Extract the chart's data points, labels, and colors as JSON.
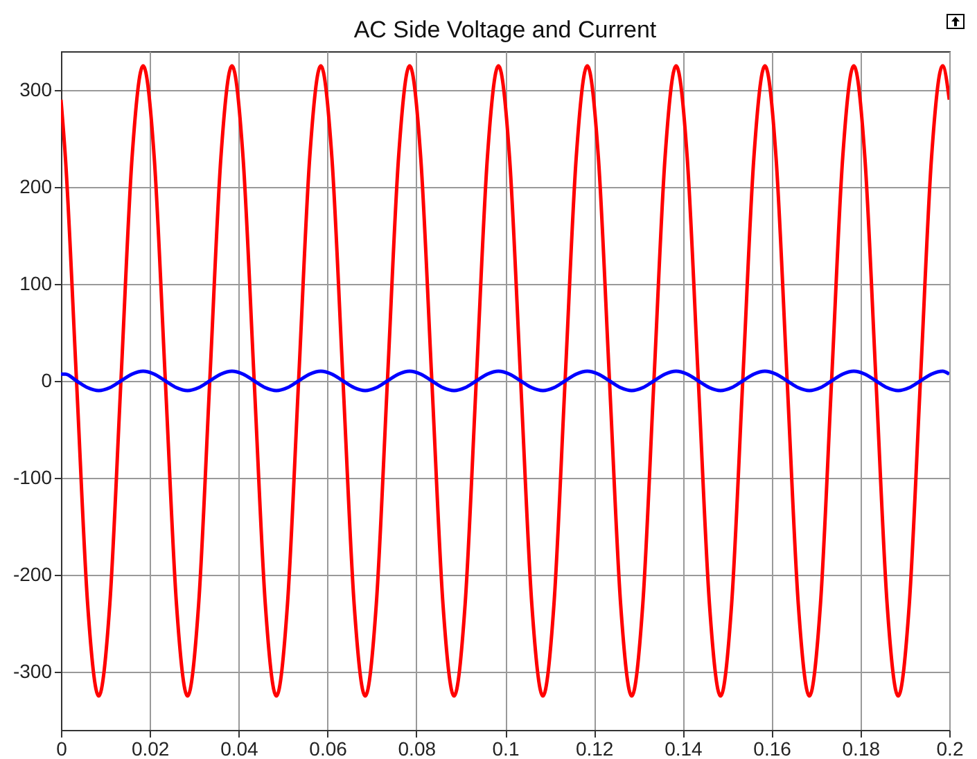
{
  "chart_data": {
    "type": "line",
    "title": "AC Side Voltage  and Current",
    "x": [
      0,
      0.001,
      0.0035,
      0.006,
      0.0085,
      0.011,
      0.0135,
      0.016,
      0.0185,
      0.021,
      0.0235,
      0.026,
      0.0285,
      0.031,
      0.0335,
      0.036,
      0.0385,
      0.041,
      0.0435,
      0.046,
      0.0485,
      0.051,
      0.0535,
      0.056,
      0.0585,
      0.061,
      0.0635,
      0.066,
      0.0685,
      0.071,
      0.0735,
      0.076,
      0.0785,
      0.081,
      0.0835,
      0.086,
      0.0885,
      0.091,
      0.0935,
      0.096,
      0.0985,
      0.101,
      0.1035,
      0.106,
      0.1085,
      0.111,
      0.1135,
      0.116,
      0.1185,
      0.121,
      0.1235,
      0.126,
      0.1285,
      0.131,
      0.1335,
      0.136,
      0.1385,
      0.141,
      0.1435,
      0.146,
      0.1485,
      0.151,
      0.1535,
      0.156,
      0.1585,
      0.161,
      0.1635,
      0.166,
      0.1685,
      0.171,
      0.1735,
      0.176,
      0.1785,
      0.181,
      0.1835,
      0.186,
      0.1885,
      0.191,
      0.1935,
      0.196,
      0.1985,
      0.2
    ],
    "series": [
      {
        "color": "#ff0000",
        "values": [
          290,
          230,
          0,
          -230,
          -325,
          -230,
          0,
          230,
          325,
          230,
          0,
          -230,
          -325,
          -230,
          0,
          230,
          325,
          230,
          0,
          -230,
          -325,
          -230,
          0,
          230,
          325,
          230,
          0,
          -230,
          -325,
          -230,
          0,
          230,
          325,
          230,
          0,
          -230,
          -325,
          -230,
          0,
          230,
          325,
          230,
          0,
          -230,
          -325,
          -230,
          0,
          230,
          325,
          230,
          0,
          -230,
          -325,
          -230,
          0,
          230,
          325,
          230,
          0,
          -230,
          -325,
          -230,
          0,
          230,
          325,
          230,
          0,
          -230,
          -325,
          -230,
          0,
          230,
          325,
          230,
          0,
          -230,
          -325,
          -230,
          0,
          230,
          325,
          290
        ]
      },
      {
        "color": "#0000ff",
        "values": [
          7,
          7,
          0,
          -7,
          -10,
          -7,
          0,
          7,
          10,
          7,
          0,
          -7,
          -10,
          -7,
          0,
          7,
          10,
          7,
          0,
          -7,
          -10,
          -7,
          0,
          7,
          10,
          7,
          0,
          -7,
          -10,
          -7,
          0,
          7,
          10,
          7,
          0,
          -7,
          -10,
          -7,
          0,
          7,
          10,
          7,
          0,
          -7,
          -10,
          -7,
          0,
          7,
          10,
          7,
          0,
          -7,
          -10,
          -7,
          0,
          7,
          10,
          7,
          0,
          -7,
          -10,
          -7,
          0,
          7,
          10,
          7,
          0,
          -7,
          -10,
          -7,
          0,
          7,
          10,
          7,
          0,
          -7,
          -10,
          -7,
          0,
          7,
          10,
          7
        ]
      }
    ],
    "xlim": [
      0,
      0.2
    ],
    "xticks": [
      0,
      0.02,
      0.04,
      0.06,
      0.08,
      0.1,
      0.12,
      0.14,
      0.16,
      0.18,
      0.2
    ],
    "ylim": [
      -360,
      340
    ],
    "yticks": [
      -300,
      -200,
      -100,
      0,
      100,
      200,
      300
    ],
    "grid": true
  }
}
